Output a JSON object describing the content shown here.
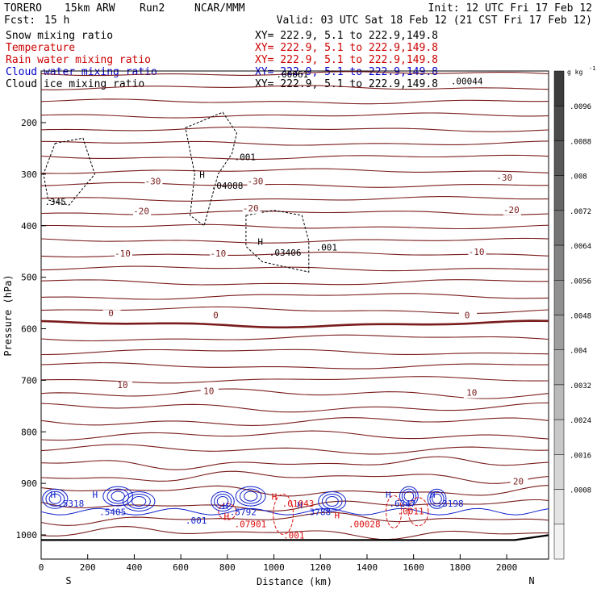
{
  "header": {
    "model": "TORERO",
    "resolution": "15km ARW",
    "run": "Run2",
    "org": "NCAR/MMM",
    "init": "Init: 12 UTC Fri 17 Feb 12",
    "fcst_label": "Fcst:",
    "fcst_value": "15 h",
    "valid": "Valid: 03 UTC Sat 18 Feb 12 (21 CST Fri 17 Feb 12)"
  },
  "legend": [
    {
      "name": "Snow mixing ratio",
      "xy": "XY= 222.9,  5.1 to 222.9,149.8",
      "color": "#000000"
    },
    {
      "name": "Temperature",
      "xy": "XY= 222.9,  5.1 to 222.9,149.8",
      "color": "#cc0000"
    },
    {
      "name": "Rain water mixing ratio",
      "xy": "XY= 222.9,  5.1 to 222.9,149.8",
      "color": "#cc0000"
    },
    {
      "name": "Cloud water mixing ratio",
      "xy": "XY= 222.9,  5.1 to 222.9,149.8",
      "color": "#0000cc"
    },
    {
      "name": "Cloud ice mixing ratio",
      "xy": "XY= 222.9,  5.1 to 222.9,149.8",
      "color": "#000000"
    }
  ],
  "colors": {
    "temperature": "#7a1c1c",
    "rain": "#dd1111",
    "cloud_water": "#1122cc",
    "ice": "#000000"
  },
  "chart_data": {
    "type": "contour",
    "xlabel": "Distance (km)",
    "ylabel": "Pressure (hPa)",
    "x_ticks": [
      0,
      200,
      400,
      600,
      800,
      1000,
      1200,
      1400,
      1600,
      1800,
      2000
    ],
    "y_ticks": [
      200,
      300,
      400,
      500,
      600,
      700,
      800,
      900,
      1000
    ],
    "xlim": [
      0,
      2180
    ],
    "ylim": [
      1050,
      100
    ],
    "left_end": "S",
    "right_end": "N",
    "colorbar": {
      "unit": "g kg",
      "unit_exp": "-1",
      "ticks": [
        ".0096",
        ".0088",
        ".008",
        ".0072",
        ".0064",
        ".0056",
        ".0048",
        ".004",
        ".0032",
        ".0024",
        ".0016",
        ".0008"
      ],
      "colors": [
        "#3c3c3c",
        "#4a4a4a",
        "#585858",
        "#666666",
        "#747474",
        "#828282",
        "#909090",
        "#9e9e9e",
        "#acacac",
        "#bababa",
        "#c8c8c8",
        "#d6d6d6",
        "#e4e4e4",
        "#f2f2f2"
      ]
    },
    "temperature_labels": [
      {
        "text": "-30",
        "x": 480,
        "p": 320
      },
      {
        "text": "-30",
        "x": 920,
        "p": 320
      },
      {
        "text": "-30",
        "x": 1990,
        "p": 313
      },
      {
        "text": "-20",
        "x": 430,
        "p": 378
      },
      {
        "text": "-20",
        "x": 900,
        "p": 372
      },
      {
        "text": "-20",
        "x": 2020,
        "p": 375
      },
      {
        "text": "-10",
        "x": 350,
        "p": 460
      },
      {
        "text": "-10",
        "x": 760,
        "p": 460
      },
      {
        "text": "-10",
        "x": 1870,
        "p": 457
      },
      {
        "text": "0",
        "x": 300,
        "p": 576
      },
      {
        "text": "0",
        "x": 750,
        "p": 580
      },
      {
        "text": "0",
        "x": 1830,
        "p": 580
      },
      {
        "text": "10",
        "x": 350,
        "p": 715
      },
      {
        "text": "10",
        "x": 720,
        "p": 727
      },
      {
        "text": "10",
        "x": 1850,
        "p": 730
      },
      {
        "text": "20",
        "x": 2050,
        "p": 902
      }
    ],
    "ice_labels": [
      {
        "text": ".345",
        "x": 15,
        "p": 360
      },
      {
        "text": "H",
        "x": 680,
        "p": 307
      },
      {
        "text": ".04088",
        "x": 730,
        "p": 328
      },
      {
        "text": ".001",
        "x": 830,
        "p": 273
      },
      {
        "text": "H",
        "x": 930,
        "p": 437
      },
      {
        "text": ".03406",
        "x": 980,
        "p": 458
      },
      {
        "text": ".001",
        "x": 1180,
        "p": 448
      },
      {
        "text": ".00061",
        "x": 1010,
        "p": 112
      },
      {
        "text": ".00044",
        "x": 1760,
        "p": 126
      }
    ],
    "cloud_labels": [
      {
        "text": "H",
        "x": 40,
        "p": 928
      },
      {
        "text": ".5318",
        "x": 70,
        "p": 945
      },
      {
        "text": "H",
        "x": 220,
        "p": 928
      },
      {
        "text": ".5405",
        "x": 250,
        "p": 962
      },
      {
        "text": ".001",
        "x": 620,
        "p": 978
      },
      {
        "text": "H",
        "x": 780,
        "p": 950
      },
      {
        "text": ".5792",
        "x": 810,
        "p": 962
      },
      {
        "text": "H",
        "x": 1100,
        "p": 948
      },
      {
        "text": ".3788",
        "x": 1130,
        "p": 962
      },
      {
        "text": "H",
        "x": 1480,
        "p": 928
      },
      {
        "text": ".6247",
        "x": 1495,
        "p": 945
      },
      {
        "text": "H",
        "x": 1670,
        "p": 928
      },
      {
        "text": ".3198",
        "x": 1700,
        "p": 945
      }
    ],
    "rain_labels": [
      {
        "text": "H",
        "x": 785,
        "p": 970
      },
      {
        "text": ".07901",
        "x": 830,
        "p": 985
      },
      {
        "text": ".01043",
        "x": 1035,
        "p": 945
      },
      {
        "text": ".00028",
        "x": 1320,
        "p": 985
      },
      {
        "text": ".001",
        "x": 1040,
        "p": 1007
      },
      {
        "text": "H",
        "x": 1260,
        "p": 968
      },
      {
        "text": "H",
        "x": 990,
        "p": 932
      },
      {
        "text": ".0011",
        "x": 1530,
        "p": 960
      }
    ]
  }
}
